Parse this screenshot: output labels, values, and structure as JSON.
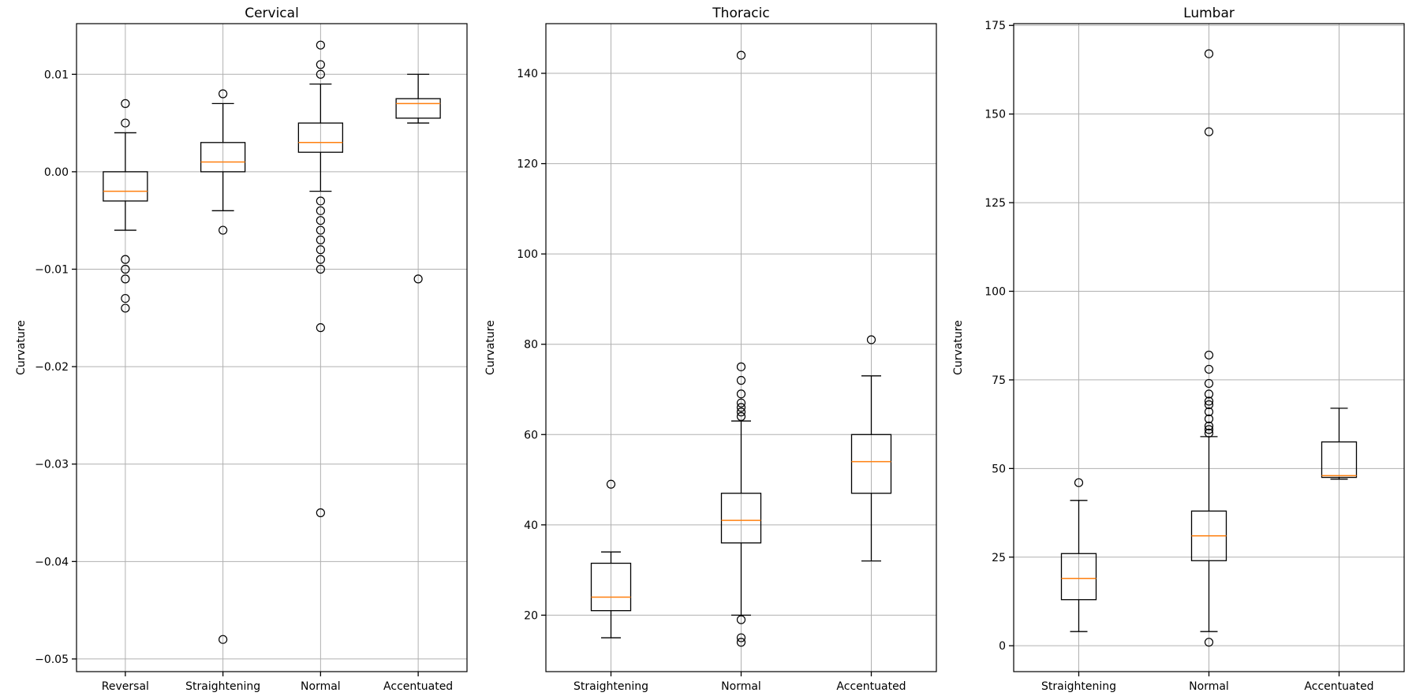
{
  "chart_data": [
    {
      "type": "box",
      "title": "Cervical",
      "ylabel": "Curvature",
      "ylim": [
        -0.0513,
        0.0152
      ],
      "yticks": [
        -0.05,
        -0.04,
        -0.03,
        -0.02,
        -0.01,
        0.0,
        0.01
      ],
      "ytick_labels": [
        "−0.05",
        "−0.04",
        "−0.03",
        "−0.02",
        "−0.01",
        "0.00",
        "0.01"
      ],
      "categories": [
        "Reversal",
        "Straightening",
        "Normal",
        "Accentuated"
      ],
      "boxes": [
        {
          "whislo": -0.006,
          "q1": -0.003,
          "med": -0.002,
          "q3": 0.0,
          "whishi": 0.004,
          "fliers": [
            0.007,
            0.005,
            -0.009,
            -0.01,
            -0.011,
            -0.013,
            -0.014
          ]
        },
        {
          "whislo": -0.004,
          "q1": 0.0,
          "med": 0.001,
          "q3": 0.003,
          "whishi": 0.007,
          "fliers": [
            0.008,
            -0.006,
            -0.048
          ]
        },
        {
          "whislo": -0.002,
          "q1": 0.002,
          "med": 0.003,
          "q3": 0.005,
          "whishi": 0.009,
          "fliers": [
            0.013,
            0.011,
            0.01,
            -0.003,
            -0.004,
            -0.005,
            -0.006,
            -0.007,
            -0.008,
            -0.009,
            -0.01,
            -0.016,
            -0.035
          ]
        },
        {
          "whislo": 0.005,
          "q1": 0.0055,
          "med": 0.007,
          "q3": 0.0075,
          "whishi": 0.01,
          "fliers": [
            -0.011
          ]
        }
      ]
    },
    {
      "type": "box",
      "title": "Thoracic",
      "ylabel": "Curvature",
      "ylim": [
        7.5,
        151
      ],
      "yticks": [
        20,
        40,
        60,
        80,
        100,
        120,
        140
      ],
      "ytick_labels": [
        "20",
        "40",
        "60",
        "80",
        "100",
        "120",
        "140"
      ],
      "categories": [
        "Straightening",
        "Normal",
        "Accentuated"
      ],
      "boxes": [
        {
          "whislo": 15,
          "q1": 21,
          "med": 24,
          "q3": 31.5,
          "whishi": 34,
          "fliers": [
            49
          ]
        },
        {
          "whislo": 20,
          "q1": 36,
          "med": 41,
          "q3": 47,
          "whishi": 63,
          "fliers": [
            144,
            75,
            72,
            69,
            67,
            66,
            65,
            64,
            19,
            15,
            14
          ]
        },
        {
          "whislo": 32,
          "q1": 47,
          "med": 54,
          "q3": 60,
          "whishi": 73,
          "fliers": [
            81
          ]
        }
      ]
    },
    {
      "type": "box",
      "title": "Lumbar",
      "ylabel": "Curvature",
      "ylim": [
        -7.3,
        175.5
      ],
      "yticks": [
        0,
        25,
        50,
        75,
        100,
        125,
        150,
        175
      ],
      "ytick_labels": [
        "0",
        "25",
        "50",
        "75",
        "100",
        "125",
        "150",
        "175"
      ],
      "categories": [
        "Straightening",
        "Normal",
        "Accentuated"
      ],
      "boxes": [
        {
          "whislo": 4,
          "q1": 13,
          "med": 19,
          "q3": 26,
          "whishi": 41,
          "fliers": [
            46
          ]
        },
        {
          "whislo": 4,
          "q1": 24,
          "med": 31,
          "q3": 38,
          "whishi": 59,
          "fliers": [
            167,
            145,
            82,
            78,
            74,
            71,
            69,
            68,
            66,
            64,
            62,
            61,
            60,
            1
          ]
        },
        {
          "whislo": 47,
          "q1": 47.5,
          "med": 48,
          "q3": 57.5,
          "whishi": 67,
          "fliers": []
        }
      ]
    }
  ]
}
